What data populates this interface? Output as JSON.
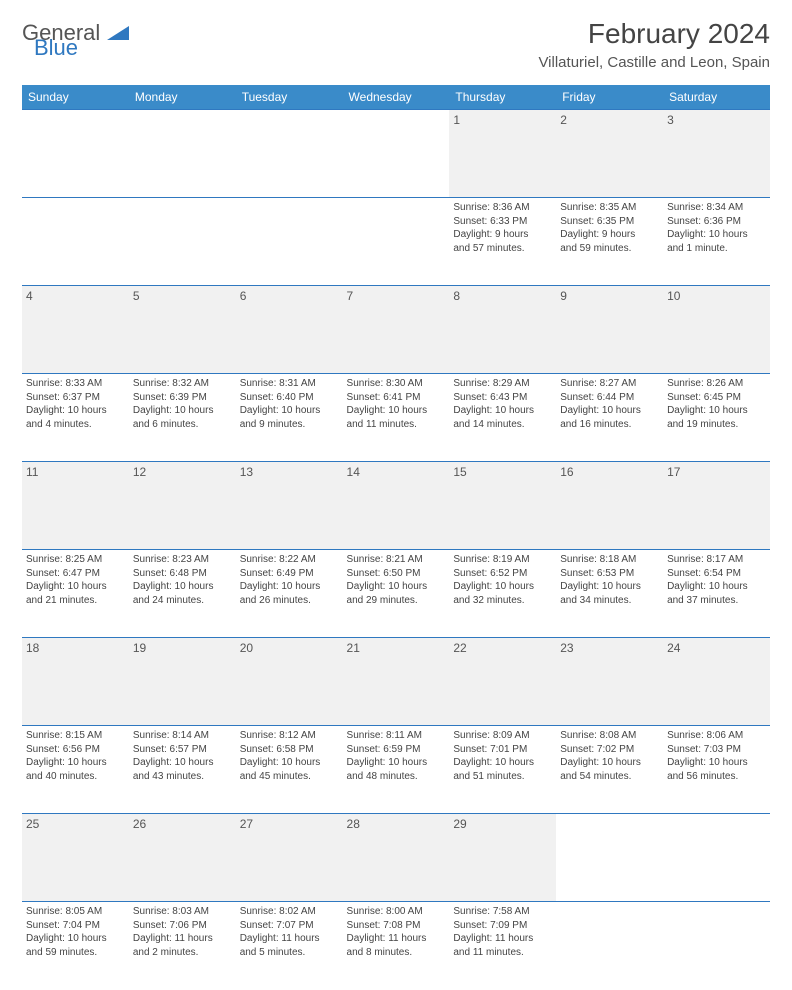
{
  "logo": {
    "general": "General",
    "blue": "Blue"
  },
  "title": "February 2024",
  "location": "Villaturiel, Castille and Leon, Spain",
  "weekdays": [
    "Sunday",
    "Monday",
    "Tuesday",
    "Wednesday",
    "Thursday",
    "Friday",
    "Saturday"
  ],
  "colors": {
    "header_bg": "#3a8bc9",
    "header_text": "#ffffff",
    "daynum_bg": "#f1f1f1",
    "border": "#2f78c0",
    "logo_blue": "#2f78c0",
    "text": "#444444"
  },
  "rows": [
    {
      "nums": [
        "",
        "",
        "",
        "",
        "1",
        "2",
        "3"
      ],
      "cells": [
        null,
        null,
        null,
        null,
        {
          "sunrise": "Sunrise: 8:36 AM",
          "sunset": "Sunset: 6:33 PM",
          "daylight1": "Daylight: 9 hours",
          "daylight2": "and 57 minutes."
        },
        {
          "sunrise": "Sunrise: 8:35 AM",
          "sunset": "Sunset: 6:35 PM",
          "daylight1": "Daylight: 9 hours",
          "daylight2": "and 59 minutes."
        },
        {
          "sunrise": "Sunrise: 8:34 AM",
          "sunset": "Sunset: 6:36 PM",
          "daylight1": "Daylight: 10 hours",
          "daylight2": "and 1 minute."
        }
      ]
    },
    {
      "nums": [
        "4",
        "5",
        "6",
        "7",
        "8",
        "9",
        "10"
      ],
      "cells": [
        {
          "sunrise": "Sunrise: 8:33 AM",
          "sunset": "Sunset: 6:37 PM",
          "daylight1": "Daylight: 10 hours",
          "daylight2": "and 4 minutes."
        },
        {
          "sunrise": "Sunrise: 8:32 AM",
          "sunset": "Sunset: 6:39 PM",
          "daylight1": "Daylight: 10 hours",
          "daylight2": "and 6 minutes."
        },
        {
          "sunrise": "Sunrise: 8:31 AM",
          "sunset": "Sunset: 6:40 PM",
          "daylight1": "Daylight: 10 hours",
          "daylight2": "and 9 minutes."
        },
        {
          "sunrise": "Sunrise: 8:30 AM",
          "sunset": "Sunset: 6:41 PM",
          "daylight1": "Daylight: 10 hours",
          "daylight2": "and 11 minutes."
        },
        {
          "sunrise": "Sunrise: 8:29 AM",
          "sunset": "Sunset: 6:43 PM",
          "daylight1": "Daylight: 10 hours",
          "daylight2": "and 14 minutes."
        },
        {
          "sunrise": "Sunrise: 8:27 AM",
          "sunset": "Sunset: 6:44 PM",
          "daylight1": "Daylight: 10 hours",
          "daylight2": "and 16 minutes."
        },
        {
          "sunrise": "Sunrise: 8:26 AM",
          "sunset": "Sunset: 6:45 PM",
          "daylight1": "Daylight: 10 hours",
          "daylight2": "and 19 minutes."
        }
      ]
    },
    {
      "nums": [
        "11",
        "12",
        "13",
        "14",
        "15",
        "16",
        "17"
      ],
      "cells": [
        {
          "sunrise": "Sunrise: 8:25 AM",
          "sunset": "Sunset: 6:47 PM",
          "daylight1": "Daylight: 10 hours",
          "daylight2": "and 21 minutes."
        },
        {
          "sunrise": "Sunrise: 8:23 AM",
          "sunset": "Sunset: 6:48 PM",
          "daylight1": "Daylight: 10 hours",
          "daylight2": "and 24 minutes."
        },
        {
          "sunrise": "Sunrise: 8:22 AM",
          "sunset": "Sunset: 6:49 PM",
          "daylight1": "Daylight: 10 hours",
          "daylight2": "and 26 minutes."
        },
        {
          "sunrise": "Sunrise: 8:21 AM",
          "sunset": "Sunset: 6:50 PM",
          "daylight1": "Daylight: 10 hours",
          "daylight2": "and 29 minutes."
        },
        {
          "sunrise": "Sunrise: 8:19 AM",
          "sunset": "Sunset: 6:52 PM",
          "daylight1": "Daylight: 10 hours",
          "daylight2": "and 32 minutes."
        },
        {
          "sunrise": "Sunrise: 8:18 AM",
          "sunset": "Sunset: 6:53 PM",
          "daylight1": "Daylight: 10 hours",
          "daylight2": "and 34 minutes."
        },
        {
          "sunrise": "Sunrise: 8:17 AM",
          "sunset": "Sunset: 6:54 PM",
          "daylight1": "Daylight: 10 hours",
          "daylight2": "and 37 minutes."
        }
      ]
    },
    {
      "nums": [
        "18",
        "19",
        "20",
        "21",
        "22",
        "23",
        "24"
      ],
      "cells": [
        {
          "sunrise": "Sunrise: 8:15 AM",
          "sunset": "Sunset: 6:56 PM",
          "daylight1": "Daylight: 10 hours",
          "daylight2": "and 40 minutes."
        },
        {
          "sunrise": "Sunrise: 8:14 AM",
          "sunset": "Sunset: 6:57 PM",
          "daylight1": "Daylight: 10 hours",
          "daylight2": "and 43 minutes."
        },
        {
          "sunrise": "Sunrise: 8:12 AM",
          "sunset": "Sunset: 6:58 PM",
          "daylight1": "Daylight: 10 hours",
          "daylight2": "and 45 minutes."
        },
        {
          "sunrise": "Sunrise: 8:11 AM",
          "sunset": "Sunset: 6:59 PM",
          "daylight1": "Daylight: 10 hours",
          "daylight2": "and 48 minutes."
        },
        {
          "sunrise": "Sunrise: 8:09 AM",
          "sunset": "Sunset: 7:01 PM",
          "daylight1": "Daylight: 10 hours",
          "daylight2": "and 51 minutes."
        },
        {
          "sunrise": "Sunrise: 8:08 AM",
          "sunset": "Sunset: 7:02 PM",
          "daylight1": "Daylight: 10 hours",
          "daylight2": "and 54 minutes."
        },
        {
          "sunrise": "Sunrise: 8:06 AM",
          "sunset": "Sunset: 7:03 PM",
          "daylight1": "Daylight: 10 hours",
          "daylight2": "and 56 minutes."
        }
      ]
    },
    {
      "nums": [
        "25",
        "26",
        "27",
        "28",
        "29",
        "",
        ""
      ],
      "cells": [
        {
          "sunrise": "Sunrise: 8:05 AM",
          "sunset": "Sunset: 7:04 PM",
          "daylight1": "Daylight: 10 hours",
          "daylight2": "and 59 minutes."
        },
        {
          "sunrise": "Sunrise: 8:03 AM",
          "sunset": "Sunset: 7:06 PM",
          "daylight1": "Daylight: 11 hours",
          "daylight2": "and 2 minutes."
        },
        {
          "sunrise": "Sunrise: 8:02 AM",
          "sunset": "Sunset: 7:07 PM",
          "daylight1": "Daylight: 11 hours",
          "daylight2": "and 5 minutes."
        },
        {
          "sunrise": "Sunrise: 8:00 AM",
          "sunset": "Sunset: 7:08 PM",
          "daylight1": "Daylight: 11 hours",
          "daylight2": "and 8 minutes."
        },
        {
          "sunrise": "Sunrise: 7:58 AM",
          "sunset": "Sunset: 7:09 PM",
          "daylight1": "Daylight: 11 hours",
          "daylight2": "and 11 minutes."
        },
        null,
        null
      ]
    }
  ]
}
